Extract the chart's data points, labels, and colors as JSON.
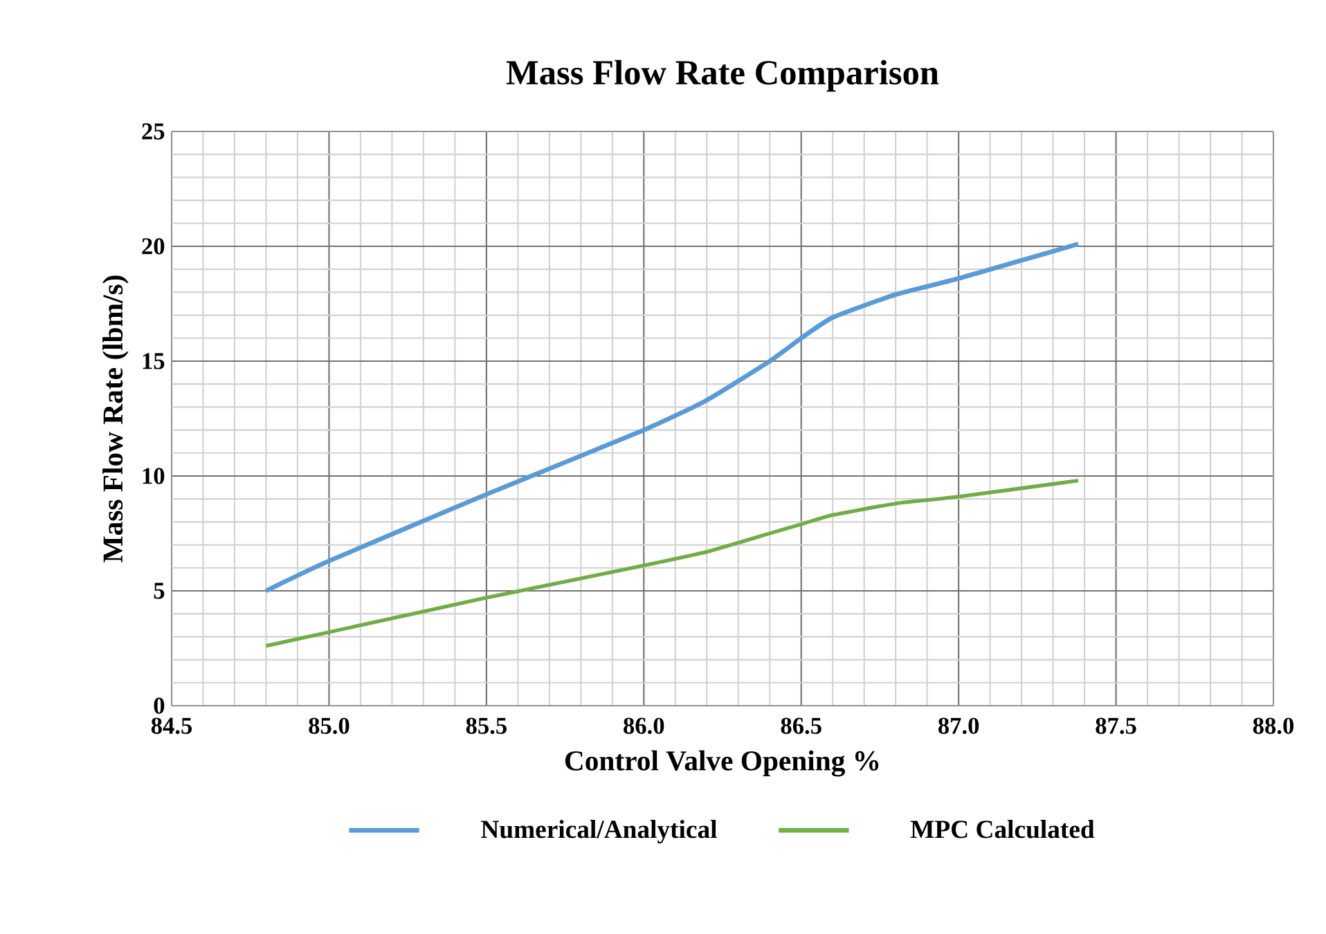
{
  "chart_data": {
    "type": "line",
    "title": "Mass Flow Rate Comparison",
    "xlabel": "Control Valve Opening %",
    "ylabel": "Mass Flow Rate (lbm/s)",
    "x": [
      84.8,
      85.0,
      85.5,
      86.0,
      86.2,
      86.4,
      86.5,
      86.6,
      86.8,
      87.0,
      87.38
    ],
    "series": [
      {
        "name": "Numerical/Analytical",
        "color": "#5b9bd5",
        "values": [
          5.0,
          6.3,
          9.2,
          12.0,
          13.3,
          15.0,
          16.0,
          16.9,
          17.9,
          18.6,
          20.1
        ]
      },
      {
        "name": "MPC Calculated",
        "color": "#70ad47",
        "values": [
          2.6,
          3.2,
          4.7,
          6.1,
          6.7,
          7.5,
          7.9,
          8.3,
          8.8,
          9.1,
          9.8
        ]
      }
    ],
    "xlim": [
      84.5,
      88.0
    ],
    "xticks": [
      {
        "value": 84.5,
        "label": "84.5"
      },
      {
        "value": 85,
        "label": "85.0"
      },
      {
        "value": 85.5,
        "label": "85.5"
      },
      {
        "value": 86,
        "label": "86.0"
      },
      {
        "value": 86.5,
        "label": "86.5"
      },
      {
        "value": 87,
        "label": "87.0"
      },
      {
        "value": 87.5,
        "label": "87.5"
      },
      {
        "value": 88,
        "label": "88.0"
      }
    ],
    "ylim": [
      0,
      25
    ],
    "yticks": [
      0,
      5,
      10,
      15,
      20,
      25
    ],
    "grid": true,
    "legend": "bottom",
    "marker": "none",
    "line_style": "solid"
  }
}
